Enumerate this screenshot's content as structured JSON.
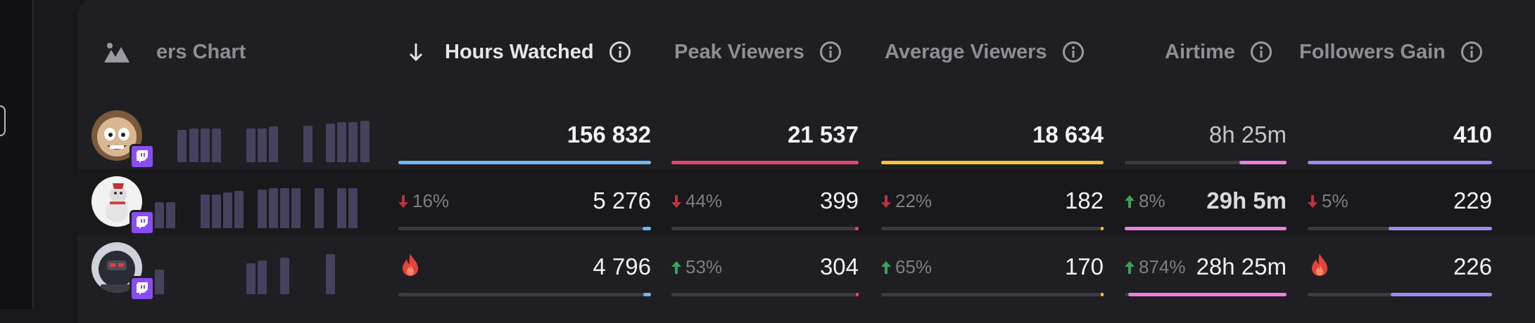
{
  "header": {
    "chart_label": "ers Chart",
    "hours_watched": "Hours Watched",
    "peak_viewers": "Peak Viewers",
    "average_viewers": "Average Viewers",
    "airtime": "Airtime",
    "followers_gain": "Followers Gain"
  },
  "colors": {
    "hours": "#6fb7f5",
    "peak": "#e84574",
    "avg": "#f5c542",
    "airtime": "#ef7fde",
    "followers": "#9b8cf2",
    "up": "#3aa35a",
    "down": "#b7353d"
  },
  "rows": [
    {
      "avatar_icon": "bald-cartoon-avatar",
      "platform_icon": "twitch-icon",
      "spark": [
        0,
        0,
        0.58,
        0.61,
        0.61,
        0.61,
        0,
        0,
        0.61,
        0.61,
        0.64,
        0,
        0,
        0.66,
        0,
        0.69,
        0.72,
        0.72,
        0.74
      ],
      "hours": {
        "value": "156 832",
        "change": "",
        "fill": 1.0
      },
      "peak": {
        "value": "21 537",
        "change": "",
        "fill": 1.0
      },
      "avg": {
        "value": "18 634",
        "change": "",
        "fill": 1.0
      },
      "airtime": {
        "value": "8h 25m",
        "change": "",
        "fill": 0.29
      },
      "followers": {
        "value": "410",
        "change": "",
        "fill": 1.0
      }
    },
    {
      "avatar_icon": "snowman-avatar",
      "platform_icon": "twitch-icon",
      "spark": [
        0.47,
        0.47,
        0,
        0,
        0.61,
        0.61,
        0.64,
        0.67,
        0,
        0.69,
        0.72,
        0.72,
        0.72,
        0,
        0.72,
        0,
        0.72,
        0.72,
        0
      ],
      "hours": {
        "value": "5 276",
        "change": "16%",
        "dir": "down",
        "fill": 0.034
      },
      "peak": {
        "value": "399",
        "change": "44%",
        "dir": "down",
        "fill": 0.019
      },
      "avg": {
        "value": "182",
        "change": "22%",
        "dir": "down",
        "fill": 0.01
      },
      "airtime": {
        "value": "29h 5m",
        "change": "8%",
        "dir": "up",
        "fill": 1.0
      },
      "followers": {
        "value": "229",
        "change": "5%",
        "dir": "down",
        "fill": 0.56
      }
    },
    {
      "avatar_icon": "robot-avatar",
      "platform_icon": "twitch-icon",
      "spark": [
        0.44,
        0,
        0,
        0,
        0,
        0,
        0,
        0,
        0.56,
        0.61,
        0,
        0.66,
        0,
        0,
        0,
        0.72,
        0,
        0,
        0
      ],
      "hours": {
        "value": "4 796",
        "change": "",
        "icon": "fire",
        "fill": 0.031
      },
      "peak": {
        "value": "304",
        "change": "53%",
        "dir": "up",
        "fill": 0.014
      },
      "avg": {
        "value": "170",
        "change": "65%",
        "dir": "up",
        "fill": 0.009
      },
      "airtime": {
        "value": "28h 25m",
        "change": "874%",
        "dir": "up",
        "fill": 0.98
      },
      "followers": {
        "value": "226",
        "change": "",
        "icon": "fire",
        "fill": 0.55
      }
    }
  ]
}
